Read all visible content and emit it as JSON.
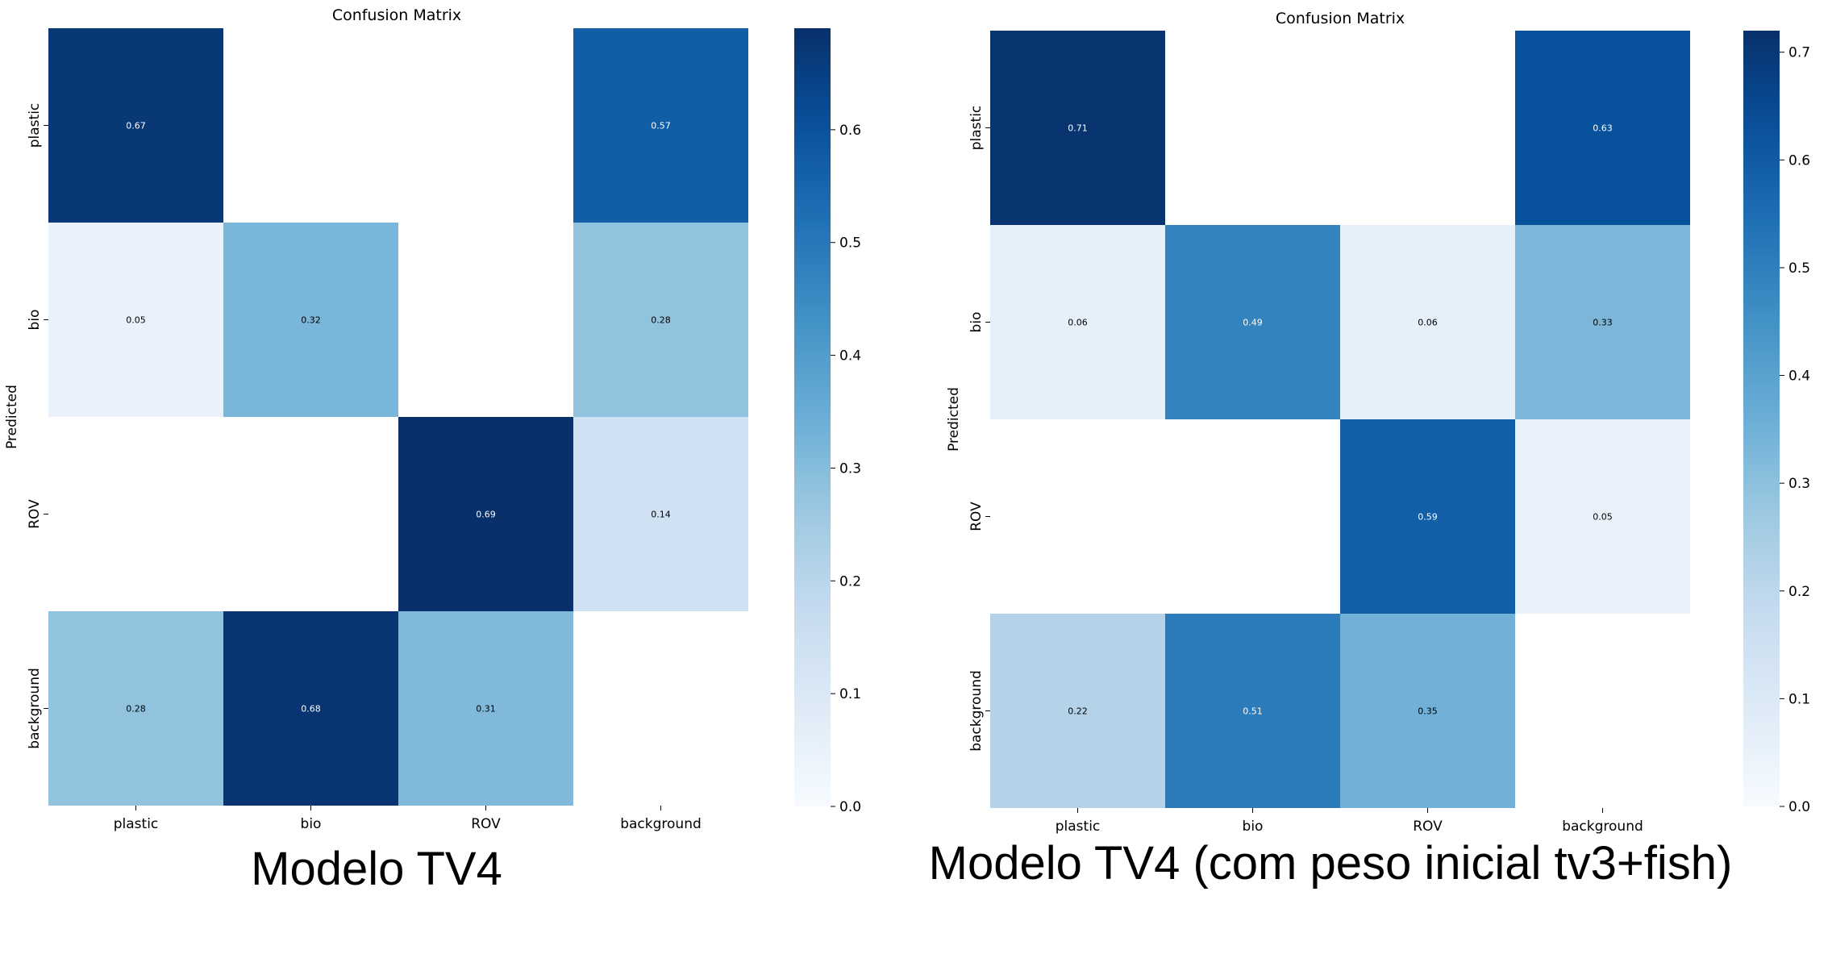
{
  "chart_data": [
    {
      "type": "heatmap",
      "title": "Confusion Matrix",
      "ylabel": "Predicted",
      "xlabel": "",
      "x_categories": [
        "plastic",
        "bio",
        "ROV",
        "background"
      ],
      "y_categories": [
        "plastic",
        "bio",
        "ROV",
        "background"
      ],
      "values": [
        [
          0.67,
          null,
          null,
          0.57
        ],
        [
          0.05,
          0.32,
          null,
          0.28
        ],
        [
          null,
          null,
          0.69,
          0.14
        ],
        [
          0.28,
          0.68,
          0.31,
          null
        ]
      ],
      "colorbar_range": [
        0.0,
        0.69
      ],
      "colorbar_ticks": [
        "0.0",
        "0.1",
        "0.2",
        "0.3",
        "0.4",
        "0.5",
        "0.6"
      ],
      "caption": "Modelo TV4"
    },
    {
      "type": "heatmap",
      "title": "Confusion Matrix",
      "ylabel": "Predicted",
      "xlabel": "",
      "x_categories": [
        "plastic",
        "bio",
        "ROV",
        "background"
      ],
      "y_categories": [
        "plastic",
        "bio",
        "ROV",
        "background"
      ],
      "values": [
        [
          0.71,
          null,
          null,
          0.63
        ],
        [
          0.06,
          0.49,
          0.06,
          0.33
        ],
        [
          null,
          null,
          0.59,
          0.05
        ],
        [
          0.22,
          0.51,
          0.35,
          null
        ]
      ],
      "colorbar_range": [
        0.0,
        0.72
      ],
      "colorbar_ticks": [
        "0.0",
        "0.1",
        "0.2",
        "0.3",
        "0.4",
        "0.5",
        "0.6",
        "0.7"
      ],
      "caption": "Modelo TV4 (com peso inicial tv3+fish)"
    }
  ],
  "colors": {
    "text": "#000000",
    "cell_text_dark": "#000000",
    "cell_text_light": "#ffffff",
    "empty_cell": "#ffffff"
  }
}
